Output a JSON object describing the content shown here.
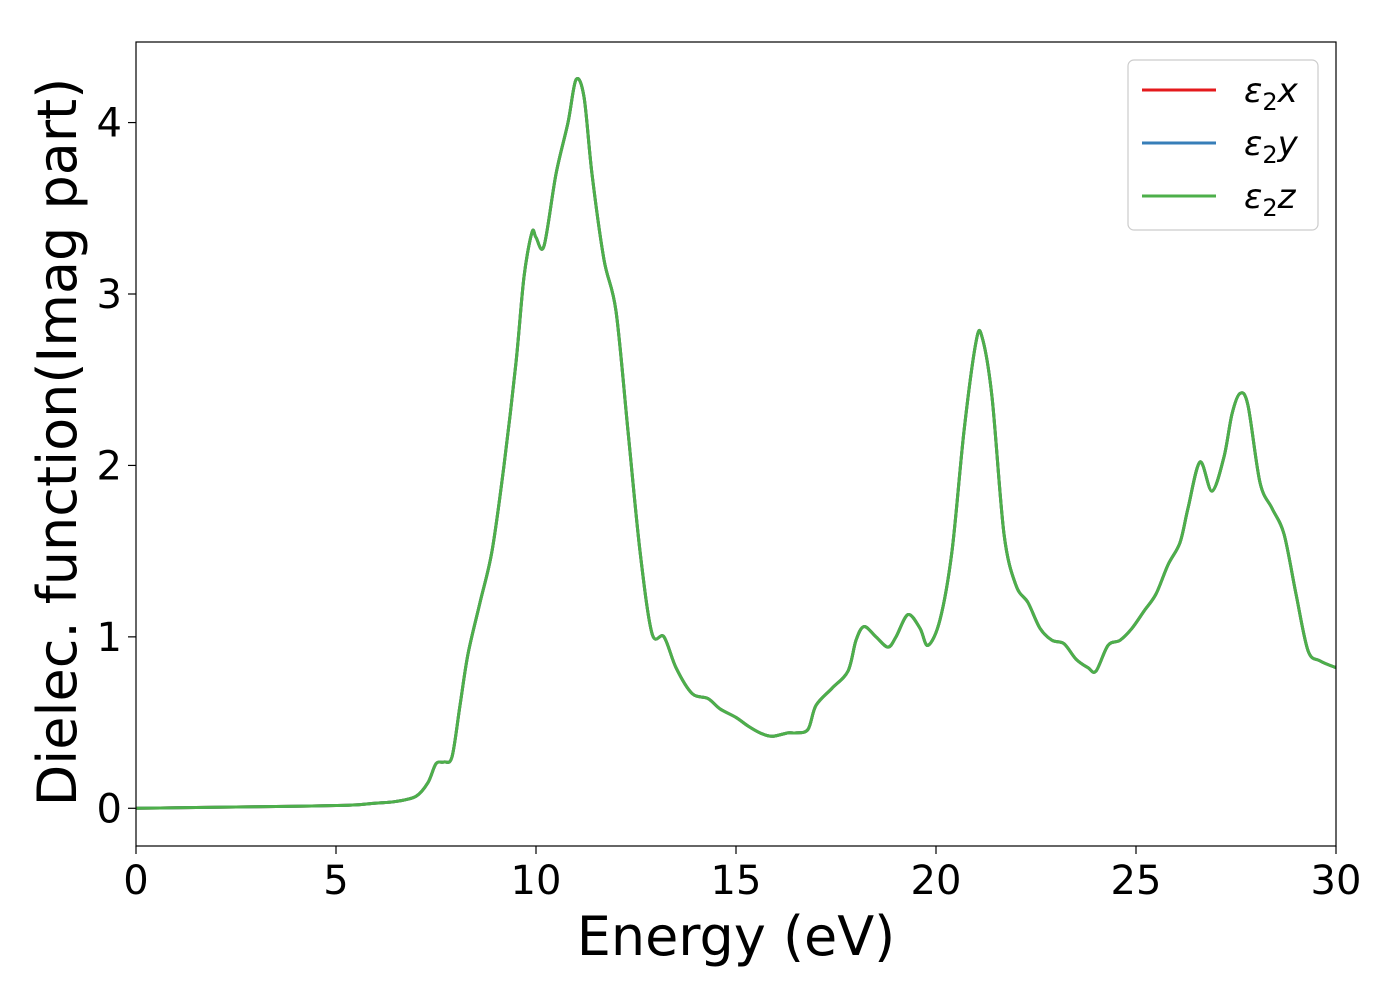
{
  "chart_data": {
    "type": "line",
    "title": "",
    "xlabel": "Energy (eV)",
    "ylabel": "Dielec. function(Imag part)",
    "xlim": [
      0,
      30
    ],
    "ylim": [
      -0.22,
      4.47
    ],
    "xticks": [
      0,
      5,
      10,
      15,
      20,
      25,
      30
    ],
    "yticks": [
      0,
      1,
      2,
      3,
      4
    ],
    "grid": false,
    "legend_position": "top-right",
    "series": [
      {
        "name": "ε₂x",
        "label_base": "ε",
        "label_sub": "2",
        "label_var": "x",
        "color": "#e41a1c",
        "x": [
          0,
          1,
          2,
          3,
          4,
          5,
          5.5,
          6,
          6.5,
          7,
          7.3,
          7.5,
          7.7,
          7.9,
          8.1,
          8.3,
          8.6,
          8.9,
          9.2,
          9.5,
          9.7,
          9.9,
          10.0,
          10.2,
          10.5,
          10.8,
          11.0,
          11.2,
          11.4,
          11.7,
          12.0,
          12.3,
          12.6,
          12.9,
          13.2,
          13.5,
          13.9,
          14.3,
          14.6,
          15.0,
          15.3,
          15.6,
          15.9,
          16.3,
          16.5,
          16.8,
          17.0,
          17.4,
          17.8,
          18.0,
          18.2,
          18.5,
          18.8,
          19.0,
          19.3,
          19.6,
          19.8,
          20.1,
          20.4,
          20.7,
          21.0,
          21.15,
          21.4,
          21.7,
          22.0,
          22.3,
          22.6,
          22.9,
          23.2,
          23.5,
          23.8,
          24.0,
          24.3,
          24.6,
          24.9,
          25.2,
          25.5,
          25.8,
          26.1,
          26.3,
          26.6,
          26.9,
          27.2,
          27.4,
          27.6,
          27.8,
          28.1,
          28.4,
          28.7,
          29.0,
          29.3,
          29.6,
          30.0
        ],
        "y": [
          0.0,
          0.003,
          0.006,
          0.009,
          0.012,
          0.016,
          0.02,
          0.03,
          0.04,
          0.07,
          0.15,
          0.26,
          0.27,
          0.3,
          0.6,
          0.9,
          1.2,
          1.5,
          2.0,
          2.6,
          3.1,
          3.36,
          3.33,
          3.28,
          3.7,
          4.0,
          4.25,
          4.15,
          3.7,
          3.2,
          2.9,
          2.2,
          1.5,
          1.02,
          1.0,
          0.82,
          0.67,
          0.64,
          0.58,
          0.53,
          0.48,
          0.44,
          0.42,
          0.44,
          0.44,
          0.46,
          0.6,
          0.7,
          0.8,
          0.98,
          1.06,
          1.0,
          0.94,
          1.0,
          1.13,
          1.05,
          0.95,
          1.1,
          1.5,
          2.2,
          2.72,
          2.75,
          2.4,
          1.6,
          1.3,
          1.2,
          1.05,
          0.98,
          0.96,
          0.87,
          0.82,
          0.8,
          0.95,
          0.98,
          1.05,
          1.15,
          1.25,
          1.42,
          1.55,
          1.75,
          2.02,
          1.85,
          2.05,
          2.3,
          2.42,
          2.35,
          1.9,
          1.75,
          1.6,
          1.25,
          0.92,
          0.86,
          0.82
        ]
      },
      {
        "name": "ε₂y",
        "label_base": "ε",
        "label_sub": "2",
        "label_var": "y",
        "color": "#377eb8",
        "x": [
          0,
          1,
          2,
          3,
          4,
          5,
          5.5,
          6,
          6.5,
          7,
          7.3,
          7.5,
          7.7,
          7.9,
          8.1,
          8.3,
          8.6,
          8.9,
          9.2,
          9.5,
          9.7,
          9.9,
          10.0,
          10.2,
          10.5,
          10.8,
          11.0,
          11.2,
          11.4,
          11.7,
          12.0,
          12.3,
          12.6,
          12.9,
          13.2,
          13.5,
          13.9,
          14.3,
          14.6,
          15.0,
          15.3,
          15.6,
          15.9,
          16.3,
          16.5,
          16.8,
          17.0,
          17.4,
          17.8,
          18.0,
          18.2,
          18.5,
          18.8,
          19.0,
          19.3,
          19.6,
          19.8,
          20.1,
          20.4,
          20.7,
          21.0,
          21.15,
          21.4,
          21.7,
          22.0,
          22.3,
          22.6,
          22.9,
          23.2,
          23.5,
          23.8,
          24.0,
          24.3,
          24.6,
          24.9,
          25.2,
          25.5,
          25.8,
          26.1,
          26.3,
          26.6,
          26.9,
          27.2,
          27.4,
          27.6,
          27.8,
          28.1,
          28.4,
          28.7,
          29.0,
          29.3,
          29.6,
          30.0
        ],
        "y": [
          0.0,
          0.003,
          0.006,
          0.009,
          0.012,
          0.016,
          0.02,
          0.03,
          0.04,
          0.07,
          0.15,
          0.26,
          0.27,
          0.3,
          0.6,
          0.9,
          1.2,
          1.5,
          2.0,
          2.6,
          3.1,
          3.36,
          3.33,
          3.28,
          3.7,
          4.0,
          4.25,
          4.15,
          3.7,
          3.2,
          2.9,
          2.2,
          1.5,
          1.02,
          1.0,
          0.82,
          0.67,
          0.64,
          0.58,
          0.53,
          0.48,
          0.44,
          0.42,
          0.44,
          0.44,
          0.46,
          0.6,
          0.7,
          0.8,
          0.98,
          1.06,
          1.0,
          0.94,
          1.0,
          1.13,
          1.05,
          0.95,
          1.1,
          1.5,
          2.2,
          2.72,
          2.75,
          2.4,
          1.6,
          1.3,
          1.2,
          1.05,
          0.98,
          0.96,
          0.87,
          0.82,
          0.8,
          0.95,
          0.98,
          1.05,
          1.15,
          1.25,
          1.42,
          1.55,
          1.75,
          2.02,
          1.85,
          2.05,
          2.3,
          2.42,
          2.35,
          1.9,
          1.75,
          1.6,
          1.25,
          0.92,
          0.86,
          0.82
        ]
      },
      {
        "name": "ε₂z",
        "label_base": "ε",
        "label_sub": "2",
        "label_var": "z",
        "color": "#4daf4a",
        "x": [
          0,
          1,
          2,
          3,
          4,
          5,
          5.5,
          6,
          6.5,
          7,
          7.3,
          7.5,
          7.7,
          7.9,
          8.1,
          8.3,
          8.6,
          8.9,
          9.2,
          9.5,
          9.7,
          9.9,
          10.0,
          10.2,
          10.5,
          10.8,
          11.0,
          11.2,
          11.4,
          11.7,
          12.0,
          12.3,
          12.6,
          12.9,
          13.2,
          13.5,
          13.9,
          14.3,
          14.6,
          15.0,
          15.3,
          15.6,
          15.9,
          16.3,
          16.5,
          16.8,
          17.0,
          17.4,
          17.8,
          18.0,
          18.2,
          18.5,
          18.8,
          19.0,
          19.3,
          19.6,
          19.8,
          20.1,
          20.4,
          20.7,
          21.0,
          21.15,
          21.4,
          21.7,
          22.0,
          22.3,
          22.6,
          22.9,
          23.2,
          23.5,
          23.8,
          24.0,
          24.3,
          24.6,
          24.9,
          25.2,
          25.5,
          25.8,
          26.1,
          26.3,
          26.6,
          26.9,
          27.2,
          27.4,
          27.6,
          27.8,
          28.1,
          28.4,
          28.7,
          29.0,
          29.3,
          29.6,
          30.0
        ],
        "y": [
          0.0,
          0.003,
          0.006,
          0.009,
          0.012,
          0.016,
          0.02,
          0.03,
          0.04,
          0.07,
          0.15,
          0.26,
          0.27,
          0.3,
          0.6,
          0.9,
          1.2,
          1.5,
          2.0,
          2.6,
          3.1,
          3.36,
          3.33,
          3.28,
          3.7,
          4.0,
          4.25,
          4.15,
          3.7,
          3.2,
          2.9,
          2.2,
          1.5,
          1.02,
          1.0,
          0.82,
          0.67,
          0.64,
          0.58,
          0.53,
          0.48,
          0.44,
          0.42,
          0.44,
          0.44,
          0.46,
          0.6,
          0.7,
          0.8,
          0.98,
          1.06,
          1.0,
          0.94,
          1.0,
          1.13,
          1.05,
          0.95,
          1.1,
          1.5,
          2.2,
          2.72,
          2.75,
          2.4,
          1.6,
          1.3,
          1.2,
          1.05,
          0.98,
          0.96,
          0.87,
          0.82,
          0.8,
          0.95,
          0.98,
          1.05,
          1.15,
          1.25,
          1.42,
          1.55,
          1.75,
          2.02,
          1.85,
          2.05,
          2.3,
          2.42,
          2.35,
          1.9,
          1.75,
          1.6,
          1.25,
          0.92,
          0.86,
          0.82
        ]
      }
    ]
  }
}
